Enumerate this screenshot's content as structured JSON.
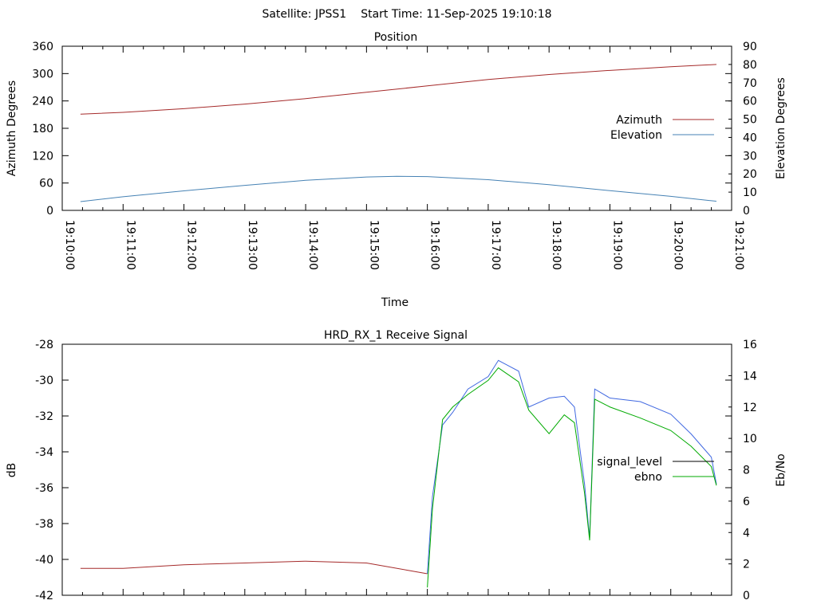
{
  "header": {
    "satellite_label": "Satellite: JPSS1",
    "start_time_label": "Start Time: 11-Sep-2025 19:10:18"
  },
  "chart_data": [
    {
      "type": "line",
      "title": "Position",
      "xlabel": "Time",
      "ylabel": "Azimuth Degrees",
      "y2label": "Elevation Degrees",
      "xlim": [
        "19:10:00",
        "19:21:00"
      ],
      "x_ticks": [
        "19:10:00",
        "19:11:00",
        "19:12:00",
        "19:13:00",
        "19:14:00",
        "19:15:00",
        "19:16:00",
        "19:17:00",
        "19:18:00",
        "19:19:00",
        "19:20:00",
        "19:21:00"
      ],
      "ylim": [
        0,
        360
      ],
      "y_ticks": [
        "0",
        "60",
        "120",
        "180",
        "240",
        "300",
        "360"
      ],
      "y2lim": [
        0,
        90
      ],
      "y2_ticks": [
        "0",
        "10",
        "20",
        "30",
        "40",
        "50",
        "60",
        "70",
        "80",
        "90"
      ],
      "legend_position": "right",
      "series": [
        {
          "name": "Azimuth",
          "axis": "y",
          "color": "#a52a2a",
          "x": [
            "19:10:18",
            "19:11:00",
            "19:12:00",
            "19:13:00",
            "19:14:00",
            "19:15:00",
            "19:16:00",
            "19:17:00",
            "19:18:00",
            "19:19:00",
            "19:20:00",
            "19:20:45"
          ],
          "values": [
            211,
            215,
            223,
            233,
            245,
            259,
            273,
            287,
            298,
            307,
            315,
            320
          ]
        },
        {
          "name": "Elevation",
          "axis": "y2",
          "color": "#4682b4",
          "x": [
            "19:10:18",
            "19:11:00",
            "19:12:00",
            "19:13:00",
            "19:14:00",
            "19:15:00",
            "19:15:30",
            "19:16:00",
            "19:17:00",
            "19:18:00",
            "19:19:00",
            "19:20:00",
            "19:20:45"
          ],
          "values": [
            4.8,
            7.5,
            10.7,
            13.7,
            16.5,
            18.3,
            18.7,
            18.5,
            16.8,
            14.1,
            10.8,
            7.7,
            5.0
          ]
        }
      ]
    },
    {
      "type": "line",
      "title": "HRD_RX_1 Receive Signal",
      "xlabel": "",
      "ylabel": "dB",
      "y2label": "Eb/No",
      "xlim": [
        "19:10:00",
        "19:21:00"
      ],
      "ylim": [
        -42,
        -28
      ],
      "y_ticks": [
        "-42",
        "-40",
        "-38",
        "-36",
        "-34",
        "-32",
        "-30",
        "-28"
      ],
      "y2lim": [
        0,
        16
      ],
      "y2_ticks": [
        "0",
        "2",
        "4",
        "6",
        "8",
        "10",
        "12",
        "14",
        "16"
      ],
      "legend_position": "right",
      "series": [
        {
          "name": "signal_level",
          "axis": "y",
          "color": "#a52a2a",
          "color_after_lock": "#4169e1",
          "x": [
            "19:10:18",
            "19:11:00",
            "19:12:00",
            "19:13:00",
            "19:14:00",
            "19:15:00",
            "19:15:40",
            "19:16:00",
            "19:16:05",
            "19:16:15",
            "19:16:25",
            "19:16:40",
            "19:17:00",
            "19:17:10",
            "19:17:30",
            "19:17:40",
            "19:18:00",
            "19:18:15",
            "19:18:25",
            "19:18:35",
            "19:18:40",
            "19:18:45",
            "19:19:00",
            "19:19:30",
            "19:20:00",
            "19:20:20",
            "19:20:40",
            "19:20:45"
          ],
          "values": [
            -40.5,
            -40.5,
            -40.3,
            -40.2,
            -40.1,
            -40.2,
            -40.6,
            -40.8,
            -36.5,
            -32.5,
            -31.8,
            -30.5,
            -29.8,
            -28.9,
            -29.5,
            -31.5,
            -31.0,
            -30.9,
            -31.5,
            -35.8,
            -38.8,
            -30.5,
            -31.0,
            -31.2,
            -31.9,
            -33.0,
            -34.3,
            -35.8
          ]
        },
        {
          "name": "ebno",
          "axis": "y2",
          "color": "#00aa00",
          "x": [
            "19:16:00",
            "19:16:05",
            "19:16:15",
            "19:16:25",
            "19:16:40",
            "19:17:00",
            "19:17:10",
            "19:17:30",
            "19:17:40",
            "19:18:00",
            "19:18:15",
            "19:18:25",
            "19:18:35",
            "19:18:40",
            "19:18:45",
            "19:19:00",
            "19:19:30",
            "19:20:00",
            "19:20:20",
            "19:20:40",
            "19:20:45"
          ],
          "values": [
            0.5,
            5.5,
            11.2,
            12.0,
            12.8,
            13.7,
            14.5,
            13.6,
            11.8,
            10.3,
            11.5,
            11.0,
            6.5,
            3.5,
            12.5,
            12.0,
            11.3,
            10.5,
            9.5,
            8.2,
            7.0
          ]
        }
      ]
    }
  ]
}
